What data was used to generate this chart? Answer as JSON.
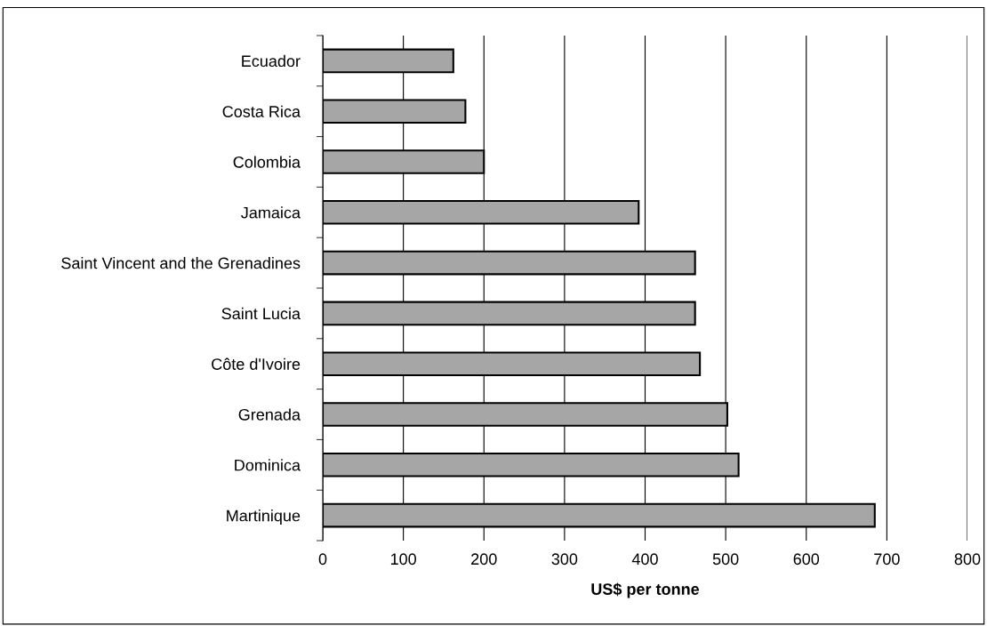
{
  "chart_data": {
    "type": "bar",
    "orientation": "horizontal",
    "xlabel": "US$ per tonne",
    "categories": [
      "Ecuador",
      "Costa Rica",
      "Colombia",
      "Jamaica",
      "Saint Vincent and the Grenadines",
      "Saint Lucia",
      "Côte d'Ivoire",
      "Grenada",
      "Dominica",
      "Martinique"
    ],
    "values": [
      162,
      177,
      200,
      392,
      462,
      462,
      468,
      502,
      516,
      685
    ],
    "color": "#a6a6a6",
    "xlim": [
      0,
      800
    ],
    "xticks": [
      0,
      100,
      200,
      300,
      400,
      500,
      600,
      700,
      800
    ],
    "grid": "x"
  }
}
